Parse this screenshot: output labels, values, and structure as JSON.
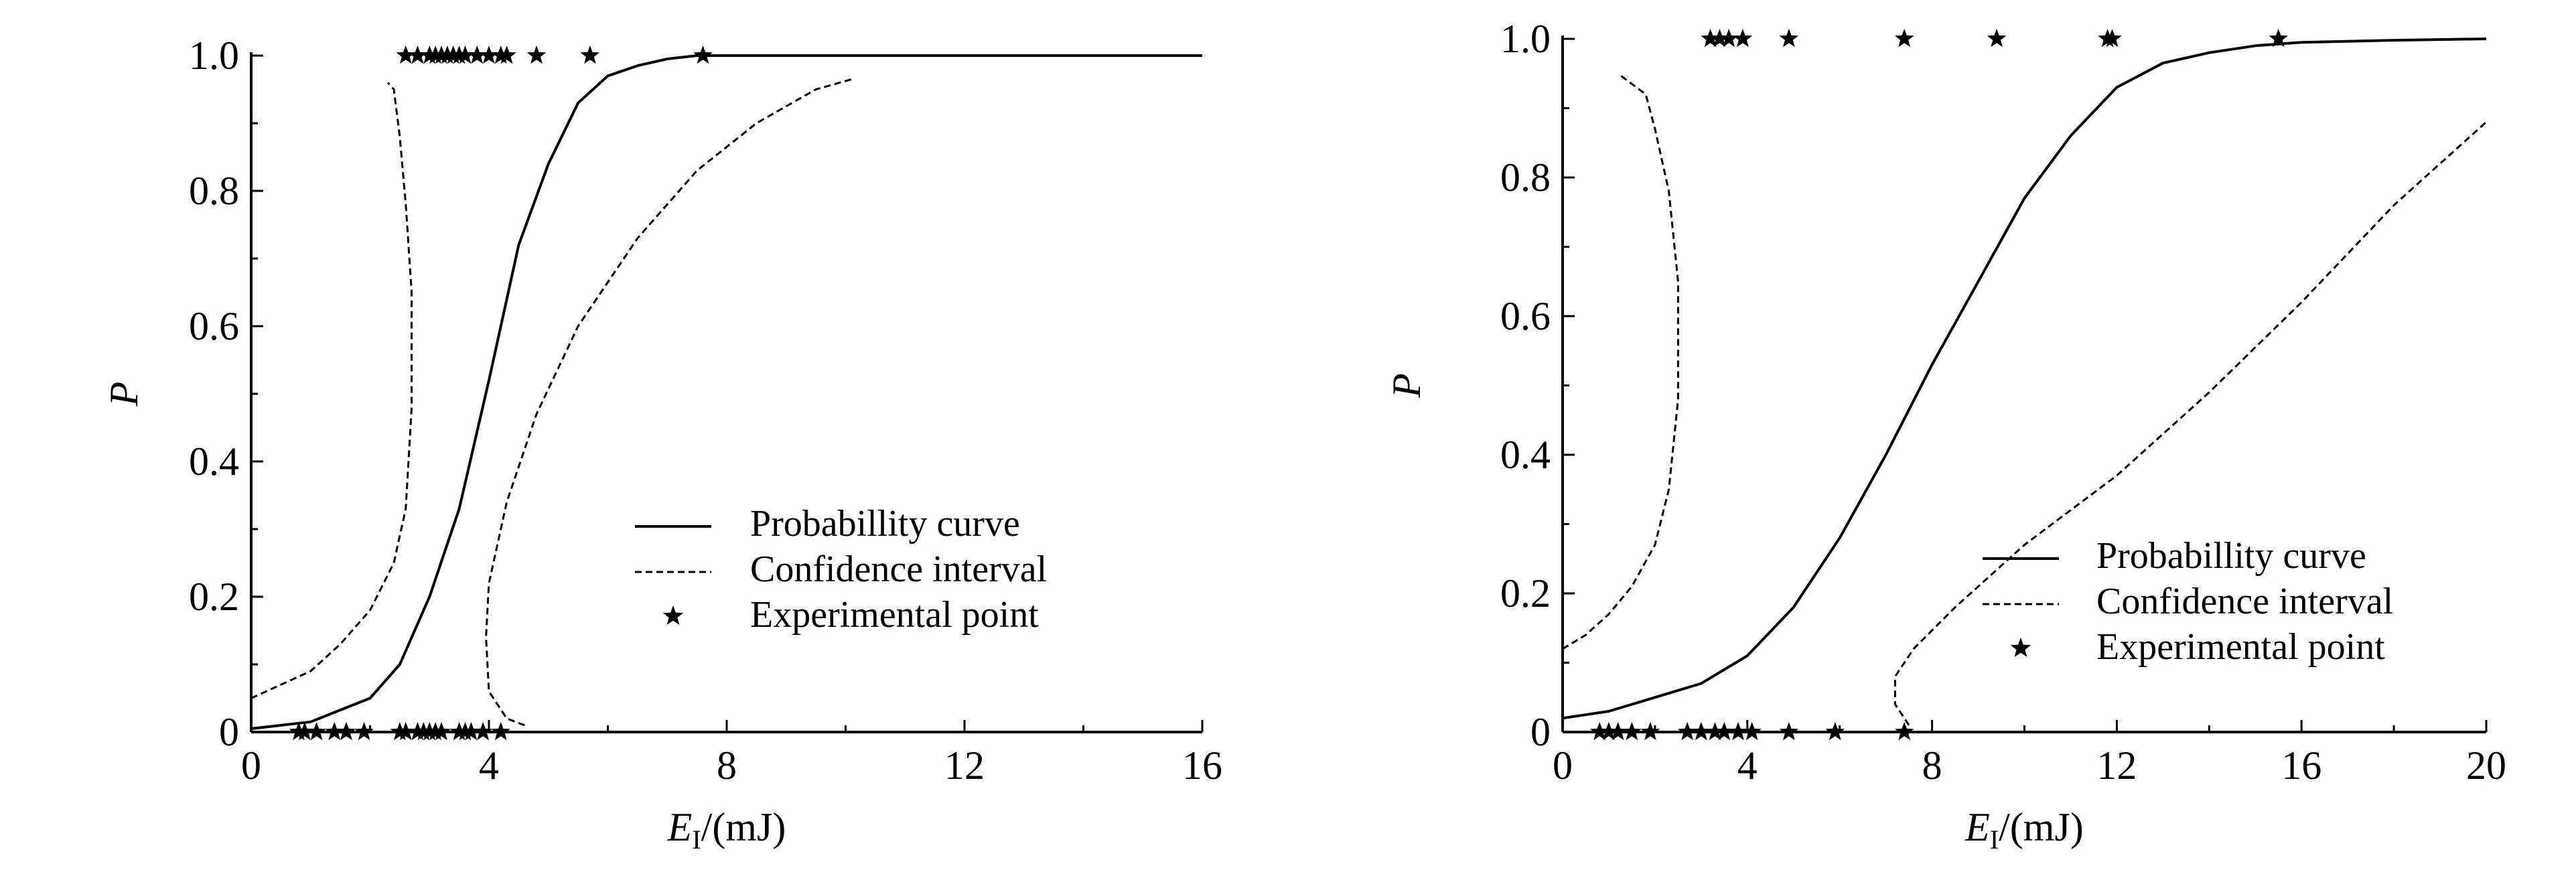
{
  "chart_data": [
    {
      "type": "line",
      "title": "",
      "xlabel_main": "E",
      "xlabel_sub": "I",
      "xlabel_unit": "/(mJ)",
      "ylabel": "P",
      "xlim": [
        0,
        16
      ],
      "ylim": [
        0,
        1
      ],
      "x_ticks": [
        0,
        4,
        8,
        12,
        16
      ],
      "y_ticks": [
        0,
        0.2,
        0.4,
        0.6,
        0.8,
        1.0
      ],
      "x_tick_labels": [
        "0",
        "4",
        "8",
        "12",
        "16"
      ],
      "y_tick_labels": [
        "0",
        "0.2",
        "0.4",
        "0.6",
        "0.8",
        "1.0"
      ],
      "grid": false,
      "legend_position": "center-right",
      "legend": [
        {
          "label": "Probabillity curve",
          "style": "solid"
        },
        {
          "label": "Confidence interval",
          "style": "dashed"
        },
        {
          "label": "Experimental point",
          "style": "star"
        }
      ],
      "series": [
        {
          "name": "Probabillity curve",
          "style": "solid",
          "points": [
            [
              0,
              0.005
            ],
            [
              1,
              0.015
            ],
            [
              2,
              0.05
            ],
            [
              2.5,
              0.1
            ],
            [
              3,
              0.2
            ],
            [
              3.5,
              0.33
            ],
            [
              4,
              0.52
            ],
            [
              4.5,
              0.72
            ],
            [
              5,
              0.84
            ],
            [
              5.5,
              0.93
            ],
            [
              6,
              0.97
            ],
            [
              6.5,
              0.985
            ],
            [
              7,
              0.995
            ],
            [
              7.5,
              1.0
            ],
            [
              8,
              1.0
            ],
            [
              12,
              1.0
            ],
            [
              16,
              1.0
            ]
          ]
        },
        {
          "name": "Confidence interval",
          "style": "dashed",
          "points": [
            [
              0,
              0.05
            ],
            [
              0.5,
              0.07
            ],
            [
              1,
              0.09
            ],
            [
              1.5,
              0.13
            ],
            [
              2,
              0.18
            ],
            [
              2.4,
              0.25
            ],
            [
              2.6,
              0.33
            ],
            [
              2.7,
              0.48
            ],
            [
              2.7,
              0.65
            ],
            [
              2.6,
              0.78
            ],
            [
              2.5,
              0.88
            ],
            [
              2.4,
              0.95
            ],
            [
              2.3,
              0.96
            ]
          ]
        },
        {
          "name": "Confidence interval",
          "style": "dashed",
          "points": [
            [
              4.6,
              0.01
            ],
            [
              4.3,
              0.02
            ],
            [
              4.0,
              0.06
            ],
            [
              3.95,
              0.14
            ],
            [
              4.0,
              0.22
            ],
            [
              4.3,
              0.34
            ],
            [
              4.8,
              0.47
            ],
            [
              5.5,
              0.6
            ],
            [
              6.5,
              0.73
            ],
            [
              7.5,
              0.83
            ],
            [
              8.5,
              0.9
            ],
            [
              9.5,
              0.95
            ],
            [
              10.1,
              0.965
            ]
          ]
        }
      ],
      "experimental_points": {
        "p0_x": [
          0.8,
          0.9,
          1.1,
          1.4,
          1.6,
          1.9,
          2.5,
          2.6,
          2.8,
          2.9,
          3.0,
          3.1,
          3.2,
          3.5,
          3.6,
          3.7,
          3.9,
          4.2
        ],
        "p1_x": [
          2.6,
          2.8,
          3.0,
          3.1,
          3.2,
          3.3,
          3.4,
          3.5,
          3.6,
          3.8,
          4.0,
          4.2,
          4.3,
          4.8,
          5.7,
          7.6
        ]
      }
    },
    {
      "type": "line",
      "title": "",
      "xlabel_main": "E",
      "xlabel_sub": "I",
      "xlabel_unit": "/(mJ)",
      "ylabel": "P",
      "xlim": [
        0,
        20
      ],
      "ylim": [
        0,
        1
      ],
      "x_ticks": [
        0,
        4,
        8,
        12,
        16,
        20
      ],
      "y_ticks": [
        0,
        0.2,
        0.4,
        0.6,
        0.8,
        1.0
      ],
      "x_tick_labels": [
        "0",
        "4",
        "8",
        "12",
        "16",
        "20"
      ],
      "y_tick_labels": [
        "0",
        "0.2",
        "0.4",
        "0.6",
        "0.8",
        "1.0"
      ],
      "grid": false,
      "legend_position": "lower-right",
      "legend": [
        {
          "label": "Probabillity curve",
          "style": "solid"
        },
        {
          "label": "Confidence interval",
          "style": "dashed"
        },
        {
          "label": "Experimental point",
          "style": "star"
        }
      ],
      "series": [
        {
          "name": "Probabillity curve",
          "style": "solid",
          "points": [
            [
              0,
              0.02
            ],
            [
              1,
              0.03
            ],
            [
              2,
              0.05
            ],
            [
              3,
              0.07
            ],
            [
              4,
              0.11
            ],
            [
              5,
              0.18
            ],
            [
              6,
              0.28
            ],
            [
              7,
              0.4
            ],
            [
              8,
              0.53
            ],
            [
              9,
              0.65
            ],
            [
              10,
              0.77
            ],
            [
              11,
              0.86
            ],
            [
              12,
              0.93
            ],
            [
              13,
              0.965
            ],
            [
              14,
              0.98
            ],
            [
              15,
              0.99
            ],
            [
              16,
              0.995
            ],
            [
              18,
              0.998
            ],
            [
              20,
              1.0
            ]
          ]
        },
        {
          "name": "Confidence interval",
          "style": "dashed",
          "points": [
            [
              0,
              0.12
            ],
            [
              0.5,
              0.14
            ],
            [
              1,
              0.17
            ],
            [
              1.5,
              0.21
            ],
            [
              2,
              0.27
            ],
            [
              2.3,
              0.35
            ],
            [
              2.5,
              0.48
            ],
            [
              2.5,
              0.65
            ],
            [
              2.3,
              0.78
            ],
            [
              2.0,
              0.87
            ],
            [
              1.8,
              0.92
            ],
            [
              1.2,
              0.95
            ]
          ]
        },
        {
          "name": "Confidence interval",
          "style": "dashed",
          "points": [
            [
              7.5,
              0.01
            ],
            [
              7.2,
              0.04
            ],
            [
              7.2,
              0.08
            ],
            [
              7.6,
              0.12
            ],
            [
              8.5,
              0.18
            ],
            [
              10,
              0.27
            ],
            [
              12,
              0.37
            ],
            [
              14,
              0.49
            ],
            [
              16,
              0.62
            ],
            [
              18,
              0.76
            ],
            [
              20,
              0.88
            ]
          ]
        }
      ],
      "experimental_points": {
        "p0_x": [
          0.8,
          1.0,
          1.2,
          1.5,
          1.9,
          2.7,
          3.0,
          3.3,
          3.5,
          3.8,
          4.1,
          4.9,
          5.9,
          7.4
        ],
        "p1_x": [
          3.2,
          3.4,
          3.6,
          3.9,
          4.9,
          7.4,
          9.4,
          11.8,
          11.9,
          15.5
        ]
      }
    }
  ]
}
